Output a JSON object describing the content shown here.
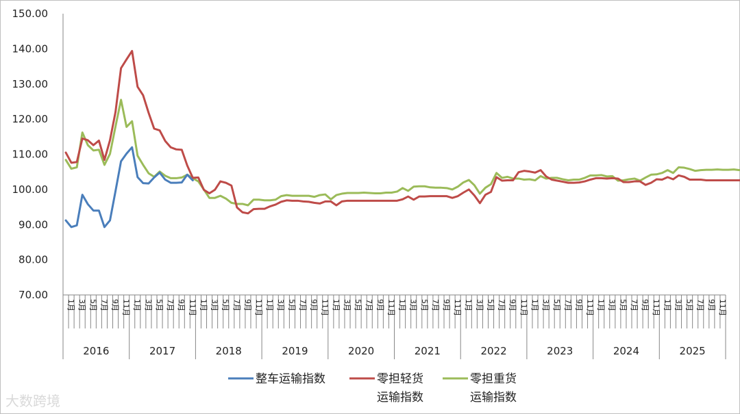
{
  "chart_data": {
    "type": "line",
    "ylim": [
      70,
      150
    ],
    "yticks": [
      "70.00",
      "80.00",
      "90.00",
      "100.00",
      "110.00",
      "120.00",
      "130.00",
      "140.00",
      "150.00"
    ],
    "years": [
      "2016",
      "2017",
      "2018",
      "2019",
      "2020",
      "2021",
      "2022",
      "2023",
      "2024",
      "2025"
    ],
    "month_labels": [
      "1月",
      "3月",
      "5月",
      "7月",
      "9月",
      "11月"
    ],
    "grid": false,
    "legend": "bottom",
    "series": [
      {
        "name": "整车运输指数",
        "color": "#4a7ebb",
        "values": [
          91.2,
          89.3,
          89.8,
          98.5,
          95.8,
          94.0,
          94.0,
          89.3,
          91.2,
          99.5,
          108.0,
          110.2,
          112.0,
          103.5,
          101.8,
          101.7,
          103.4,
          104.8,
          102.8,
          101.9,
          101.9,
          102.0,
          104.2,
          102.6
        ]
      },
      {
        "name": "零担轻货运输指数",
        "color": "#be4b48",
        "values": [
          110.5,
          107.6,
          107.8,
          114.5,
          114.0,
          112.6,
          113.9,
          108.4,
          114.0,
          122.0,
          134.5,
          137.0,
          139.4,
          129.2,
          126.8,
          121.8,
          117.3,
          116.8,
          113.8,
          112.0,
          111.4,
          111.3,
          106.8,
          103.3,
          103.4,
          99.9,
          98.9,
          99.9,
          102.3,
          101.9,
          101.1,
          94.9,
          93.5,
          93.2,
          94.4,
          94.5,
          94.5,
          95.2,
          95.7,
          96.5,
          96.9,
          96.8,
          96.8,
          96.6,
          96.5,
          96.2,
          96.0,
          96.6,
          96.6,
          95.5,
          96.6,
          96.8,
          96.8,
          96.8,
          96.8,
          96.8,
          96.8,
          96.8,
          96.8,
          96.8,
          96.8,
          97.2,
          98.0,
          97.1,
          98.0,
          98.0,
          98.1,
          98.1,
          98.1,
          98.1,
          97.6,
          98.1,
          99.1,
          100.0,
          98.3,
          96.1,
          98.5,
          99.3,
          103.5,
          102.5,
          102.6,
          102.6,
          104.9,
          105.3,
          105.1,
          104.8,
          105.5,
          103.7,
          102.8,
          102.5,
          102.2,
          101.9,
          101.9,
          102.0,
          102.3,
          102.8,
          103.2,
          103.2,
          103.1,
          103.2,
          103.1,
          102.1,
          102.1,
          102.3,
          102.3,
          101.3,
          101.9,
          102.9,
          102.8,
          103.5,
          102.9,
          104.0,
          103.6,
          102.8,
          102.8,
          102.8,
          102.6,
          102.6,
          102.6,
          102.6,
          102.6,
          102.6,
          102.6,
          102.9
        ]
      },
      {
        "name": "零担重货运输指数",
        "color": "#9bbb59",
        "values": [
          108.4,
          105.9,
          106.3,
          116.2,
          112.6,
          111.1,
          111.3,
          107.0,
          110.1,
          117.9,
          125.5,
          117.8,
          119.4,
          109.6,
          107.0,
          104.6,
          103.6,
          105.1,
          103.9,
          103.2,
          103.2,
          103.4,
          104.2,
          103.2,
          102.3,
          100.0,
          97.6,
          97.6,
          98.2,
          97.4,
          96.2,
          95.9,
          95.9,
          95.5,
          97.1,
          97.1,
          96.9,
          96.9,
          97.1,
          98.1,
          98.4,
          98.2,
          98.2,
          98.2,
          98.2,
          97.9,
          98.4,
          98.6,
          97.2,
          98.4,
          98.8,
          99.0,
          99.0,
          99.0,
          99.1,
          99.0,
          98.9,
          98.9,
          99.1,
          99.1,
          99.4,
          100.4,
          99.6,
          100.8,
          100.9,
          100.9,
          100.6,
          100.5,
          100.5,
          100.4,
          100.0,
          100.8,
          102.0,
          102.7,
          101.2,
          98.8,
          100.5,
          101.5,
          104.7,
          103.3,
          103.6,
          103.1,
          103.1,
          102.8,
          102.9,
          102.6,
          103.8,
          103.1,
          103.3,
          103.3,
          102.9,
          102.6,
          102.8,
          102.8,
          103.3,
          104.0,
          104.0,
          104.1,
          103.7,
          103.8,
          102.5,
          102.6,
          102.9,
          103.1,
          102.5,
          103.4,
          104.2,
          104.3,
          104.7,
          105.5,
          104.7,
          106.3,
          106.2,
          105.8,
          105.3,
          105.5,
          105.6,
          105.6,
          105.7,
          105.6,
          105.6,
          105.7,
          105.5,
          106.0
        ]
      }
    ]
  },
  "legend_labels": {
    "s1": "整车运输指数",
    "s2_line1": "零担轻货",
    "s2_line2": "运输指数",
    "s3_line1": "零担重货",
    "s3_line2": "运输指数"
  },
  "watermark": "大数跨境"
}
